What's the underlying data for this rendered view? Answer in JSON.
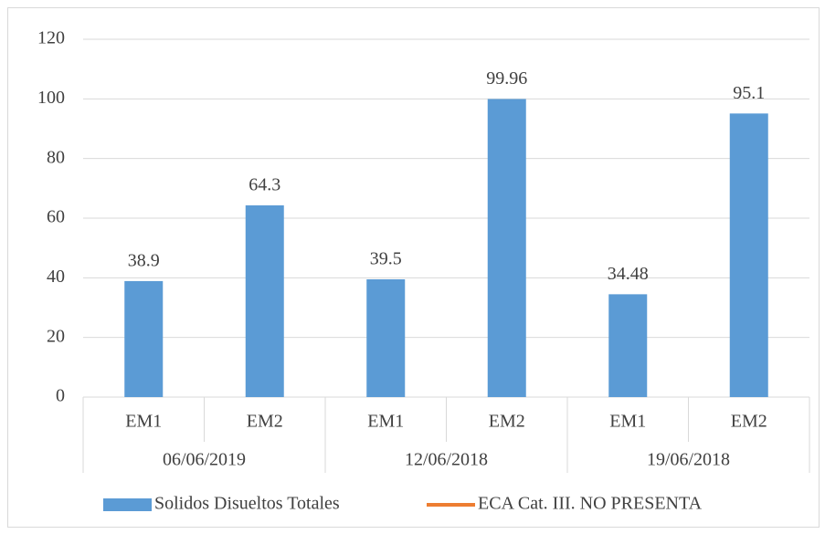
{
  "chart_data": {
    "type": "bar",
    "categories": [
      "EM1",
      "EM2",
      "EM1",
      "EM2",
      "EM1",
      "EM2"
    ],
    "groups": [
      "06/06/2019",
      "12/06/2018",
      "19/06/2018"
    ],
    "series": [
      {
        "name": "Solidos Disueltos Totales",
        "type": "bar",
        "color": "#5b9bd5",
        "values": [
          38.9,
          64.3,
          39.5,
          99.96,
          34.48,
          95.1
        ]
      },
      {
        "name": "ECA Cat. III. NO PRESENTA",
        "type": "line",
        "color": "#ed7d31",
        "values": [
          null,
          null,
          null,
          null,
          null,
          null
        ]
      }
    ],
    "ylim": [
      0,
      120
    ],
    "yticks": [
      0,
      20,
      40,
      60,
      80,
      100,
      120
    ],
    "grid": true,
    "legend": "bottom"
  }
}
